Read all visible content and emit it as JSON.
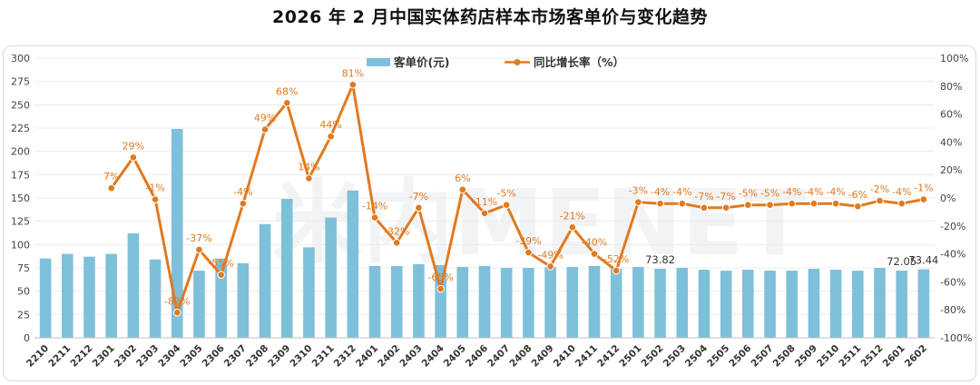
{
  "chart_data": {
    "type": "bar+line",
    "title": "2026 年 2 月中国实体药店样本市场客单价与变化趋势",
    "categories": [
      "2210",
      "2211",
      "2212",
      "2301",
      "2302",
      "2303",
      "2304",
      "2305",
      "2306",
      "2307",
      "2308",
      "2309",
      "2310",
      "2311",
      "2312",
      "2401",
      "2402",
      "2403",
      "2404",
      "2405",
      "2406",
      "2407",
      "2408",
      "2409",
      "2410",
      "2411",
      "2412",
      "2501",
      "2502",
      "2503",
      "2504",
      "2505",
      "2506",
      "2507",
      "2508",
      "2509",
      "2510",
      "2511",
      "2512",
      "2601",
      "2602"
    ],
    "series": [
      {
        "name": "客单价(元)",
        "type": "bar",
        "axis": "left",
        "color": "#7ec0da",
        "values": [
          85,
          90,
          87,
          90,
          112,
          84,
          224,
          72,
          85,
          80,
          122,
          149,
          97,
          129,
          158,
          77,
          77,
          79,
          78,
          76,
          77,
          75,
          75,
          76,
          76,
          77,
          74,
          76,
          74,
          75,
          73,
          72,
          73,
          72,
          72,
          74,
          73,
          72,
          75,
          72.05,
          73.44
        ]
      },
      {
        "name": "同比增长率（%）",
        "type": "line",
        "axis": "right",
        "color": "#e07a20",
        "values": [
          null,
          null,
          null,
          7,
          29,
          -1,
          -82,
          -37,
          -55,
          -4,
          49,
          68,
          14,
          44,
          81,
          -14,
          -32,
          -7,
          -65,
          6,
          -11,
          -5,
          -39,
          -49,
          -21,
          -40,
          -52,
          -3,
          -4,
          -4,
          -7,
          -7,
          -5,
          -5,
          -4,
          -4,
          -4,
          -6,
          -2,
          -4,
          -1
        ],
        "labels": [
          "",
          "",
          "",
          "7%",
          "29%",
          "-1%",
          "-82%",
          "-37%",
          "-55%",
          "-4%",
          "49%",
          "68%",
          "14%",
          "44%",
          "81%",
          "-14%",
          "-32%",
          "-7%",
          "-65%",
          "6%",
          "-11%",
          "-5%",
          "-39%",
          "-49%",
          "-21%",
          "-40%",
          "-52%",
          "-3%",
          "-4%",
          "-4%",
          "-7%",
          "-7%",
          "-5%",
          "-5%",
          "-4%",
          "-4%",
          "-4%",
          "-6%",
          "-2%",
          "-4%",
          "-1%"
        ]
      }
    ],
    "bar_labels": [
      {
        "category": "2502",
        "text": "73.82"
      },
      {
        "category": "2601",
        "text": "72.05"
      },
      {
        "category": "2602",
        "text": "73.44"
      }
    ],
    "y_left": {
      "min": 0,
      "max": 300,
      "step": 25
    },
    "y_right": {
      "min": -100,
      "max": 100,
      "step": 20,
      "suffix": "%"
    },
    "legend_position": "top-center",
    "watermark": "米内MENET"
  }
}
